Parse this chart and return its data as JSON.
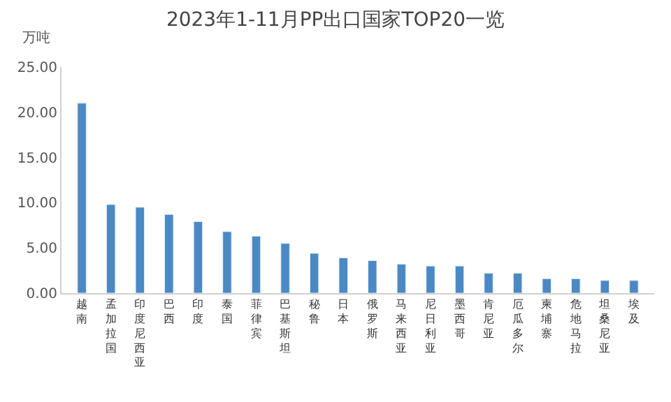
{
  "chart_data": {
    "type": "bar",
    "title": "2023年1-11月PP出口国家TOP20一览",
    "ylabel": "万吨",
    "categories": [
      "越南",
      "孟加拉国",
      "印度尼西亚",
      "巴西",
      "印度",
      "泰国",
      "菲律宾",
      "巴基斯坦",
      "秘鲁",
      "日本",
      "俄罗斯",
      "马来西亚",
      "尼日利亚",
      "墨西哥",
      "肯尼亚",
      "厄瓜多尔",
      "柬埔寨",
      "危地马拉",
      "坦桑尼亚",
      "埃及"
    ],
    "values": [
      21.0,
      9.8,
      9.5,
      8.7,
      7.9,
      6.8,
      6.3,
      5.5,
      4.4,
      3.9,
      3.6,
      3.2,
      3.0,
      3.0,
      2.2,
      2.2,
      1.6,
      1.6,
      1.4,
      1.4
    ],
    "color": "#4a89c4",
    "ylim": [
      0,
      25
    ],
    "yticks": [
      {
        "value": 0,
        "label": "0.00"
      },
      {
        "value": 5,
        "label": "5.00"
      },
      {
        "value": 10,
        "label": "10.00"
      },
      {
        "value": 15,
        "label": "15.00"
      },
      {
        "value": 20,
        "label": "20.00"
      },
      {
        "value": 25,
        "label": "25.00"
      }
    ]
  }
}
